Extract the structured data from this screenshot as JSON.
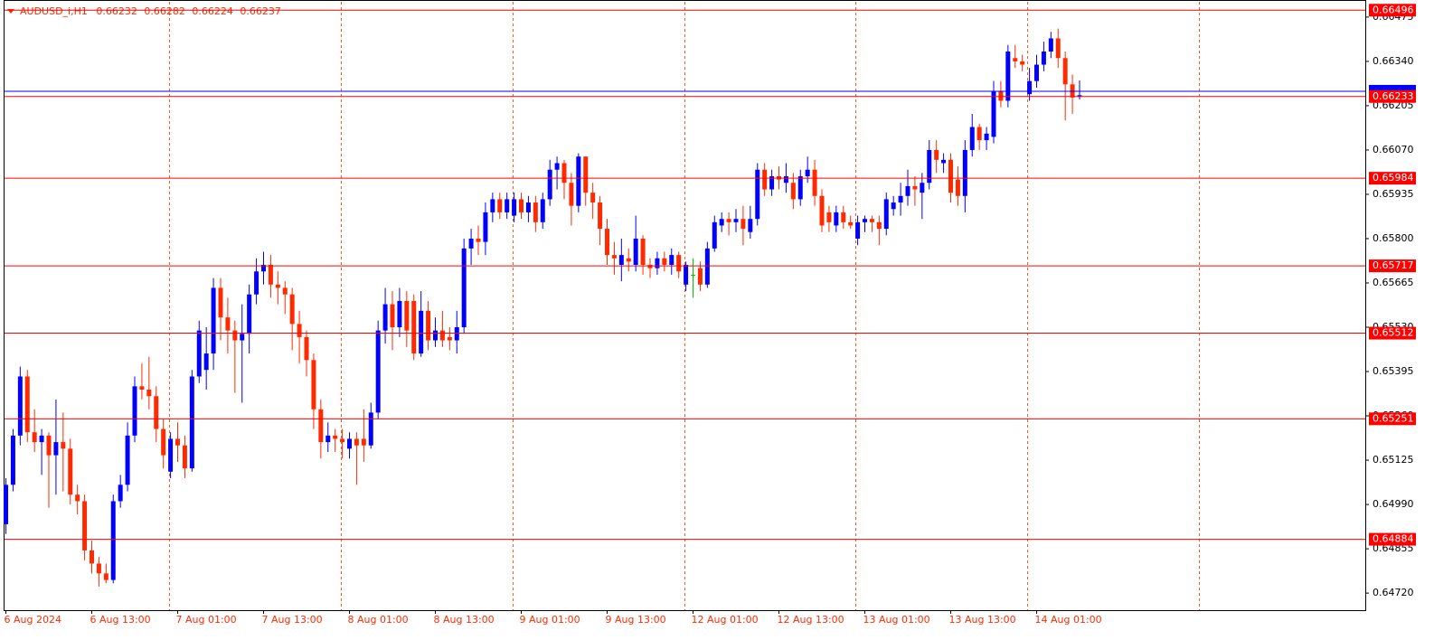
{
  "chart_data": {
    "type": "candlestick",
    "symbol": "AUDUSD_i,H1",
    "ohlc_info": [
      0.66232,
      0.66282,
      0.66224,
      0.66237
    ],
    "up_color": "#0000ff",
    "down_color": "#ff2a00",
    "doji_color": "#00c000",
    "ylim": [
      0.64668,
      0.66527
    ],
    "yticks": [
      0.66475,
      {
        "value": 0.6634,
        "label": "0.66340"
      },
      0.66205,
      {
        "value": 0.6607,
        "label": "0.66070"
      },
      0.65935,
      {
        "value": 0.658,
        "label": "0.65800"
      },
      0.65665,
      {
        "value": 0.6553,
        "label": "0.65530"
      },
      0.65395,
      {
        "value": 0.6526,
        "label": "0.65260"
      },
      0.65125,
      {
        "value": 0.6499,
        "label": "0.64990"
      },
      0.64855,
      {
        "value": 0.6472,
        "label": "0.64720"
      }
    ],
    "xticks": [
      {
        "value": 0,
        "label": "6 Aug 2024"
      },
      {
        "value": 12,
        "label": "6 Aug 13:00"
      },
      {
        "value": 24,
        "label": "7 Aug 01:00"
      },
      {
        "value": 36,
        "label": "7 Aug 13:00"
      },
      {
        "value": 48,
        "label": "8 Aug 01:00"
      },
      {
        "value": 60,
        "label": "8 Aug 13:00"
      },
      {
        "value": 72,
        "label": "9 Aug 01:00"
      },
      {
        "value": 84,
        "label": "9 Aug 13:00"
      },
      {
        "value": 96,
        "label": "12 Aug 01:00"
      },
      {
        "value": 108,
        "label": "12 Aug 13:00"
      },
      {
        "value": 120,
        "label": "13 Aug 01:00"
      },
      {
        "value": 132,
        "label": "13 Aug 13:00"
      },
      {
        "value": 144,
        "label": "14 Aug 01:00"
      }
    ],
    "levels": [
      0.66496,
      0.66233,
      0.65984,
      0.65717,
      0.65512,
      0.65251,
      0.64884
    ],
    "level_color": "#ff0000",
    "ask_line": 0.66249,
    "ask_color": "#0000ff",
    "ohlc": [
      [
        0.6493,
        0.6507,
        0.649,
        0.6505
      ],
      [
        0.6505,
        0.6522,
        0.6503,
        0.652
      ],
      [
        0.652,
        0.6541,
        0.6517,
        0.6538
      ],
      [
        0.6538,
        0.654,
        0.6518,
        0.6521
      ],
      [
        0.6521,
        0.6528,
        0.6515,
        0.6518
      ],
      [
        0.6518,
        0.6522,
        0.6508,
        0.652
      ],
      [
        0.652,
        0.6521,
        0.6498,
        0.6514
      ],
      [
        0.6514,
        0.6531,
        0.6502,
        0.6518
      ],
      [
        0.6518,
        0.6527,
        0.6503,
        0.6516
      ],
      [
        0.6516,
        0.6519,
        0.6499,
        0.6502
      ],
      [
        0.6502,
        0.6505,
        0.6496,
        0.65
      ],
      [
        0.65,
        0.6502,
        0.6482,
        0.6485
      ],
      [
        0.6485,
        0.6488,
        0.6478,
        0.6481
      ],
      [
        0.6481,
        0.6483,
        0.6474,
        0.6478
      ],
      [
        0.6478,
        0.6481,
        0.6475,
        0.6476
      ],
      [
        0.6476,
        0.6502,
        0.6475,
        0.65
      ],
      [
        0.65,
        0.6508,
        0.6498,
        0.6505
      ],
      [
        0.6505,
        0.6524,
        0.6503,
        0.652
      ],
      [
        0.652,
        0.6538,
        0.6518,
        0.6535
      ],
      [
        0.6535,
        0.6542,
        0.6531,
        0.6534
      ],
      [
        0.6534,
        0.6544,
        0.6528,
        0.6532
      ],
      [
        0.6532,
        0.6535,
        0.6518,
        0.6522
      ],
      [
        0.6522,
        0.6525,
        0.651,
        0.6514
      ],
      [
        0.6509,
        0.6521,
        0.6507,
        0.6519
      ],
      [
        0.6519,
        0.6524,
        0.6512,
        0.6517
      ],
      [
        0.6517,
        0.652,
        0.6507,
        0.651
      ],
      [
        0.651,
        0.654,
        0.6509,
        0.6538
      ],
      [
        0.6538,
        0.6555,
        0.6536,
        0.6552
      ],
      [
        0.654,
        0.6553,
        0.6534,
        0.6545
      ],
      [
        0.6545,
        0.6568,
        0.654,
        0.6565
      ],
      [
        0.6565,
        0.6568,
        0.6549,
        0.6556
      ],
      [
        0.6556,
        0.6562,
        0.6545,
        0.6552
      ],
      [
        0.6552,
        0.6555,
        0.6533,
        0.6549
      ],
      [
        0.6549,
        0.656,
        0.653,
        0.6551
      ],
      [
        0.6551,
        0.6566,
        0.6545,
        0.6563
      ],
      [
        0.6563,
        0.6574,
        0.656,
        0.657
      ],
      [
        0.657,
        0.6576,
        0.6566,
        0.6572
      ],
      [
        0.6572,
        0.6575,
        0.6562,
        0.6566
      ],
      [
        0.6566,
        0.657,
        0.656,
        0.6565
      ],
      [
        0.6565,
        0.6567,
        0.6557,
        0.6563
      ],
      [
        0.6563,
        0.6565,
        0.6546,
        0.6554
      ],
      [
        0.6554,
        0.6558,
        0.6542,
        0.655
      ],
      [
        0.655,
        0.6552,
        0.6538,
        0.6543
      ],
      [
        0.6543,
        0.6545,
        0.6522,
        0.6528
      ],
      [
        0.6528,
        0.6531,
        0.6513,
        0.6518
      ],
      [
        0.6518,
        0.6524,
        0.6515,
        0.652
      ],
      [
        0.652,
        0.6522,
        0.6515,
        0.6519
      ],
      [
        0.6519,
        0.6522,
        0.6513,
        0.6518
      ],
      [
        0.6516,
        0.6521,
        0.6513,
        0.6519
      ],
      [
        0.6519,
        0.6521,
        0.6505,
        0.6517
      ],
      [
        0.6519,
        0.6528,
        0.6512,
        0.6517
      ],
      [
        0.6517,
        0.653,
        0.6516,
        0.6527
      ],
      [
        0.6527,
        0.6555,
        0.6525,
        0.6552
      ],
      [
        0.6552,
        0.6565,
        0.6548,
        0.656
      ],
      [
        0.656,
        0.6564,
        0.6546,
        0.6553
      ],
      [
        0.6553,
        0.6565,
        0.655,
        0.6561
      ],
      [
        0.6561,
        0.6564,
        0.6547,
        0.6552
      ],
      [
        0.6561,
        0.6563,
        0.6543,
        0.6545
      ],
      [
        0.6545,
        0.6564,
        0.6544,
        0.6558
      ],
      [
        0.6558,
        0.6561,
        0.6546,
        0.6549
      ],
      [
        0.6549,
        0.6556,
        0.6547,
        0.6552
      ],
      [
        0.6552,
        0.6558,
        0.6547,
        0.6549
      ],
      [
        0.655,
        0.6553,
        0.6546,
        0.6549
      ],
      [
        0.6549,
        0.6558,
        0.6545,
        0.6553
      ],
      [
        0.6553,
        0.658,
        0.6551,
        0.6577
      ],
      [
        0.6577,
        0.6583,
        0.6572,
        0.658
      ],
      [
        0.658,
        0.6584,
        0.6575,
        0.6579
      ],
      [
        0.6579,
        0.6591,
        0.6575,
        0.6588
      ],
      [
        0.6588,
        0.6594,
        0.6585,
        0.6592
      ],
      [
        0.6592,
        0.6594,
        0.6586,
        0.6588
      ],
      [
        0.6588,
        0.6594,
        0.6586,
        0.6592
      ],
      [
        0.6587,
        0.6594,
        0.6585,
        0.6592
      ],
      [
        0.6592,
        0.6594,
        0.6586,
        0.6588
      ],
      [
        0.6588,
        0.6593,
        0.6585,
        0.6591
      ],
      [
        0.6591,
        0.6593,
        0.6582,
        0.6585
      ],
      [
        0.6585,
        0.6594,
        0.6583,
        0.6592
      ],
      [
        0.6592,
        0.6604,
        0.659,
        0.6601
      ],
      [
        0.6601,
        0.6605,
        0.6595,
        0.6603
      ],
      [
        0.6603,
        0.6604,
        0.6592,
        0.6597
      ],
      [
        0.6597,
        0.66,
        0.6584,
        0.659
      ],
      [
        0.659,
        0.6606,
        0.6588,
        0.6605
      ],
      [
        0.6605,
        0.6605,
        0.659,
        0.6594
      ],
      [
        0.6594,
        0.6597,
        0.6586,
        0.6591
      ],
      [
        0.6591,
        0.6593,
        0.6578,
        0.6583
      ],
      [
        0.6583,
        0.6586,
        0.6572,
        0.6575
      ],
      [
        0.6575,
        0.6579,
        0.6569,
        0.6574
      ],
      [
        0.6572,
        0.658,
        0.6567,
        0.6575
      ],
      [
        0.6574,
        0.6577,
        0.657,
        0.6573
      ],
      [
        0.6572,
        0.6587,
        0.657,
        0.658
      ],
      [
        0.658,
        0.6581,
        0.6569,
        0.6572
      ],
      [
        0.6572,
        0.6574,
        0.6568,
        0.6571
      ],
      [
        0.6571,
        0.6576,
        0.6569,
        0.6574
      ],
      [
        0.6574,
        0.6576,
        0.657,
        0.6572
      ],
      [
        0.6572,
        0.6577,
        0.6569,
        0.6575
      ],
      [
        0.6575,
        0.6576,
        0.6568,
        0.657
      ],
      [
        0.6566,
        0.6573,
        0.6564,
        0.6572
      ],
      [
        0.6569,
        0.6574,
        0.6562,
        0.6569
      ],
      [
        0.6571,
        0.6573,
        0.6564,
        0.6566
      ],
      [
        0.6566,
        0.6579,
        0.6565,
        0.6577
      ],
      [
        0.6577,
        0.6587,
        0.6576,
        0.6585
      ],
      [
        0.6584,
        0.6588,
        0.6582,
        0.6586
      ],
      [
        0.6586,
        0.6588,
        0.6581,
        0.6585
      ],
      [
        0.6585,
        0.6589,
        0.6582,
        0.6586
      ],
      [
        0.6586,
        0.659,
        0.6578,
        0.6583
      ],
      [
        0.6582,
        0.659,
        0.658,
        0.6586
      ],
      [
        0.6586,
        0.6603,
        0.6584,
        0.6601
      ],
      [
        0.6601,
        0.6603,
        0.6593,
        0.6595
      ],
      [
        0.6595,
        0.6601,
        0.6593,
        0.6599
      ],
      [
        0.6599,
        0.6602,
        0.6595,
        0.6598
      ],
      [
        0.6597,
        0.6603,
        0.6594,
        0.6599
      ],
      [
        0.6597,
        0.66,
        0.6589,
        0.6592
      ],
      [
        0.6592,
        0.6601,
        0.659,
        0.6599
      ],
      [
        0.6599,
        0.6605,
        0.6597,
        0.6601
      ],
      [
        0.6601,
        0.6604,
        0.659,
        0.6593
      ],
      [
        0.6593,
        0.6595,
        0.6582,
        0.6584
      ],
      [
        0.6588,
        0.659,
        0.6582,
        0.6585
      ],
      [
        0.6584,
        0.659,
        0.6582,
        0.6588
      ],
      [
        0.6588,
        0.659,
        0.6583,
        0.6585
      ],
      [
        0.6585,
        0.6587,
        0.6583,
        0.6584
      ],
      [
        0.658,
        0.6587,
        0.6578,
        0.6585
      ],
      [
        0.6585,
        0.6587,
        0.6582,
        0.6586
      ],
      [
        0.6586,
        0.6587,
        0.6582,
        0.6585
      ],
      [
        0.6585,
        0.6587,
        0.6578,
        0.6583
      ],
      [
        0.6583,
        0.6594,
        0.6581,
        0.6592
      ],
      [
        0.6589,
        0.6593,
        0.6587,
        0.6591
      ],
      [
        0.6591,
        0.6597,
        0.6587,
        0.6593
      ],
      [
        0.6593,
        0.6601,
        0.659,
        0.6596
      ],
      [
        0.6596,
        0.6599,
        0.659,
        0.6595
      ],
      [
        0.6594,
        0.66,
        0.6586,
        0.6597
      ],
      [
        0.6597,
        0.661,
        0.6595,
        0.6607
      ],
      [
        0.6607,
        0.661,
        0.66,
        0.6604
      ],
      [
        0.6603,
        0.6606,
        0.66,
        0.6604
      ],
      [
        0.6604,
        0.6606,
        0.6591,
        0.6594
      ],
      [
        0.6598,
        0.6602,
        0.659,
        0.6593
      ],
      [
        0.6593,
        0.661,
        0.6588,
        0.6607
      ],
      [
        0.6607,
        0.6618,
        0.6605,
        0.6614
      ],
      [
        0.6614,
        0.6615,
        0.6607,
        0.661
      ],
      [
        0.661,
        0.6614,
        0.6607,
        0.6612
      ],
      [
        0.6611,
        0.6628,
        0.6609,
        0.6625
      ],
      [
        0.6625,
        0.6628,
        0.662,
        0.6622
      ],
      [
        0.6622,
        0.6639,
        0.662,
        0.6637
      ],
      [
        0.6635,
        0.6639,
        0.6632,
        0.6634
      ],
      [
        0.6634,
        0.6636,
        0.6631,
        0.6633
      ],
      [
        0.6624,
        0.6632,
        0.6622,
        0.6628
      ],
      [
        0.6628,
        0.6636,
        0.6626,
        0.6633
      ],
      [
        0.6633,
        0.664,
        0.6631,
        0.6637
      ],
      [
        0.6637,
        0.6643,
        0.6635,
        0.6641
      ],
      [
        0.6641,
        0.6644,
        0.6632,
        0.6635
      ],
      [
        0.6635,
        0.6637,
        0.6616,
        0.6627
      ],
      [
        0.6627,
        0.663,
        0.6618,
        0.6623
      ],
      [
        0.66232,
        0.66282,
        0.66224,
        0.66237
      ]
    ]
  }
}
